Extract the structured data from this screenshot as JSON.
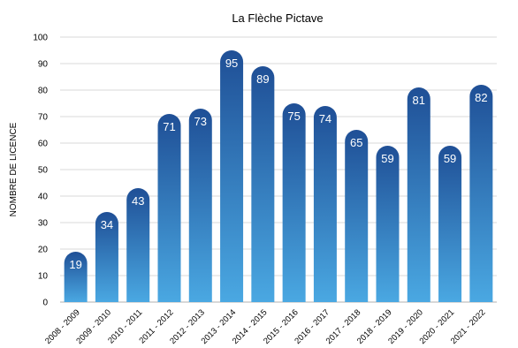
{
  "chart_data": {
    "type": "bar",
    "title": "La Flèche Pictave",
    "xlabel": "",
    "ylabel": "NOMBRE DE LICENCE",
    "ylim": [
      0,
      100
    ],
    "yticks": [
      0,
      10,
      20,
      30,
      40,
      50,
      60,
      70,
      80,
      90,
      100
    ],
    "grid": true,
    "legend": "none",
    "categories": [
      "2008 - 2009",
      "2009 - 2010",
      "2010 - 2011",
      "2011 - 2012",
      "2012 - 2013",
      "2013 - 2014",
      "2014 - 2015",
      "2015 - 2016",
      "2016 - 2017",
      "2017 - 2018",
      "2018 - 2019",
      "2019 - 2020",
      "2020 - 2021",
      "2021 - 2022"
    ],
    "values": [
      19,
      34,
      43,
      71,
      73,
      95,
      89,
      75,
      74,
      65,
      59,
      81,
      59,
      82
    ],
    "data_labels": [
      "19",
      "34",
      "43",
      "71",
      "73",
      "95",
      "89",
      "75",
      "74",
      "65",
      "59",
      "81",
      "59",
      "82"
    ],
    "colors": {
      "bar_top": "#1f4f96",
      "bar_bottom": "#4aa8e2",
      "grid": "#d9d9d9"
    }
  }
}
